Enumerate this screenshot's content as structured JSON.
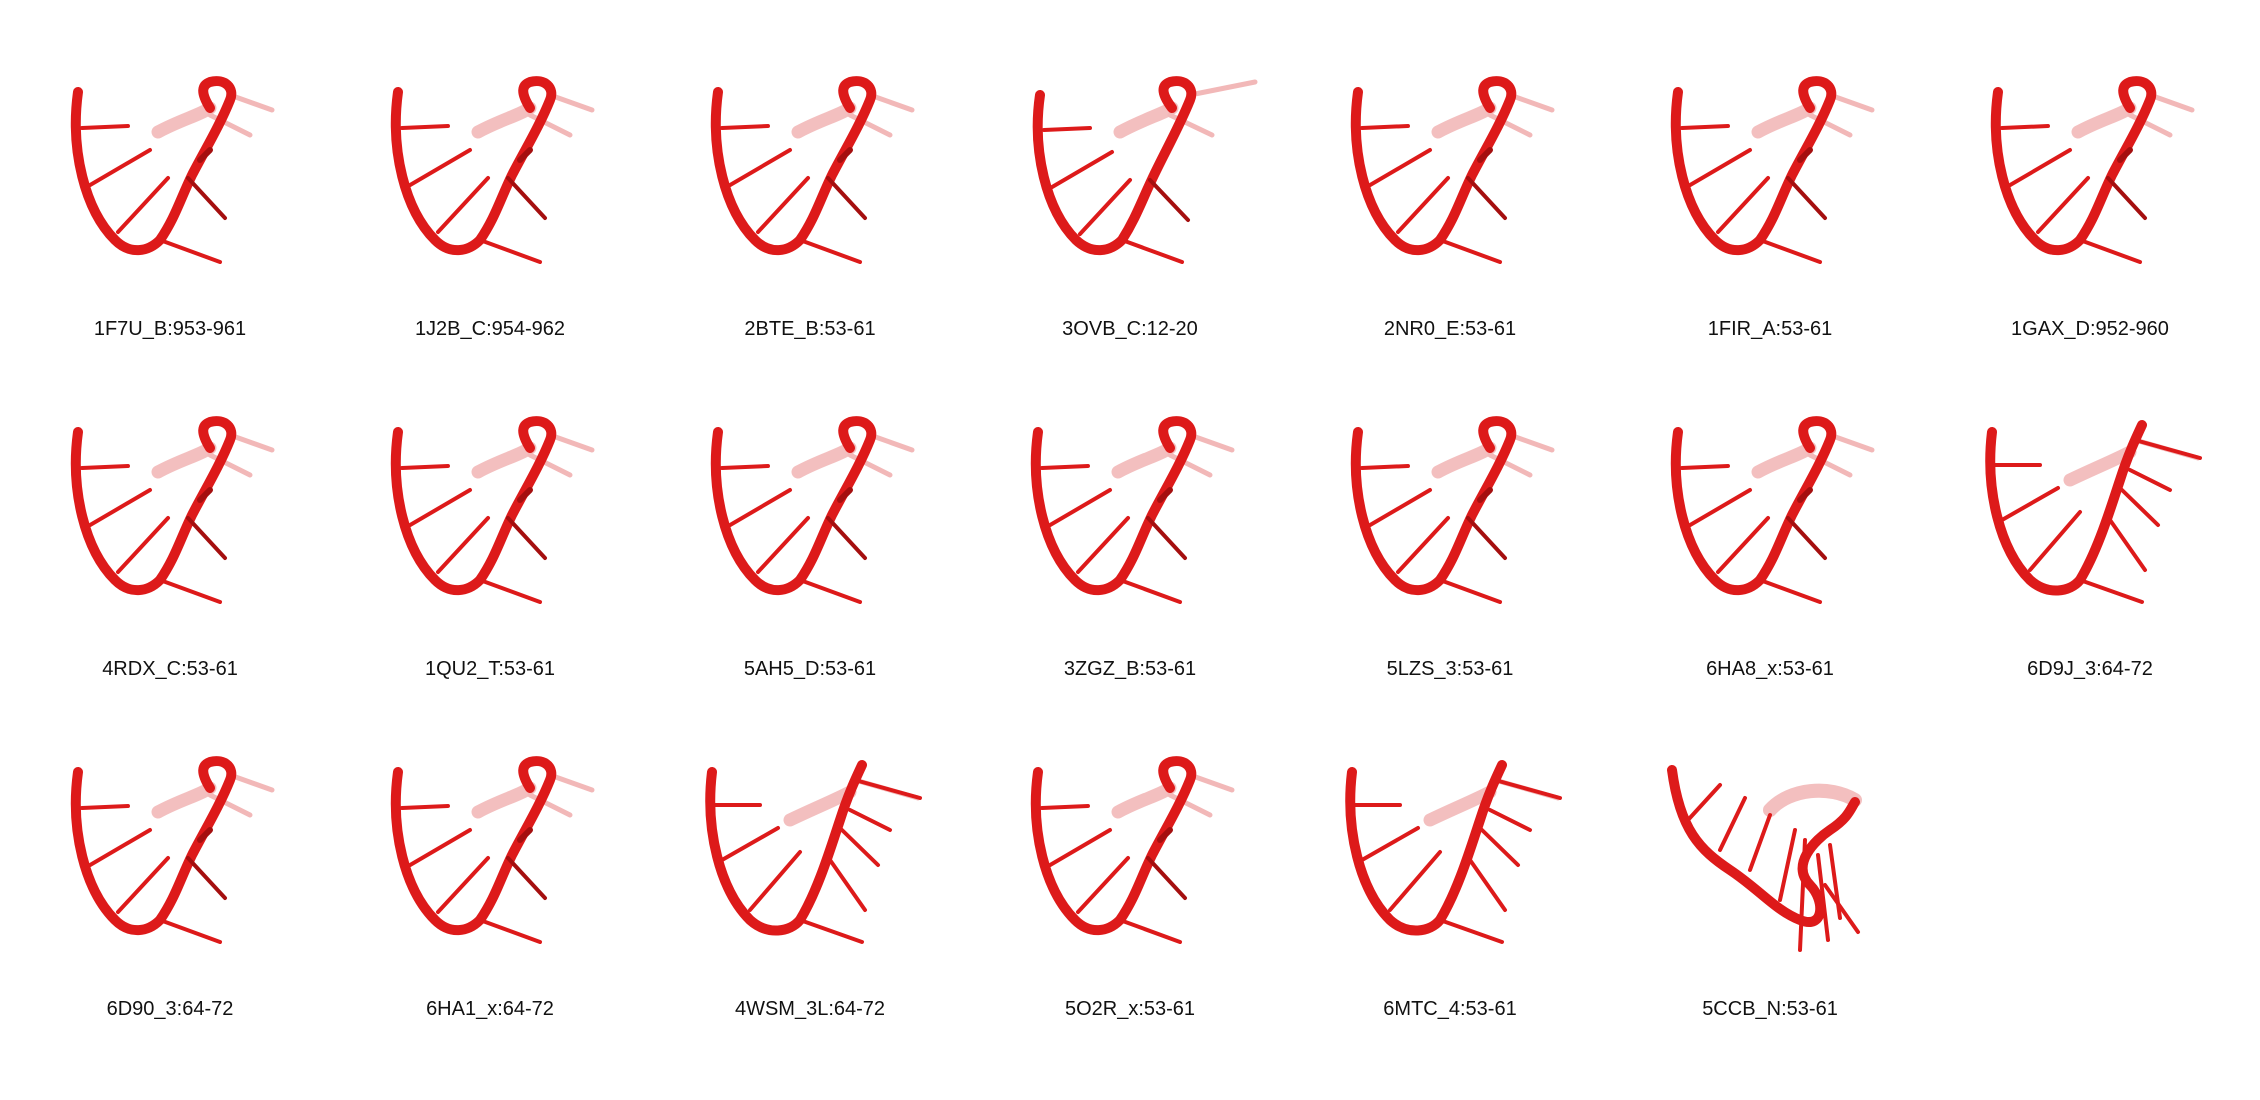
{
  "structure_color": "#dd1a1a",
  "structure_dark": "#a50f0f",
  "structure_faded": "#f2b8b8",
  "panels": [
    {
      "label": "1F7U_B:953-961",
      "variant": "a"
    },
    {
      "label": "1J2B_C:954-962",
      "variant": "a"
    },
    {
      "label": "2BTE_B:53-61",
      "variant": "a"
    },
    {
      "label": "3OVB_C:12-20",
      "variant": "b"
    },
    {
      "label": "2NR0_E:53-61",
      "variant": "a"
    },
    {
      "label": "1FIR_A:53-61",
      "variant": "a"
    },
    {
      "label": "1GAX_D:952-960",
      "variant": "a"
    },
    {
      "label": "4RDX_C:53-61",
      "variant": "a"
    },
    {
      "label": "1QU2_T:53-61",
      "variant": "a"
    },
    {
      "label": "5AH5_D:53-61",
      "variant": "a"
    },
    {
      "label": "3ZGZ_B:53-61",
      "variant": "a"
    },
    {
      "label": "5LZS_3:53-61",
      "variant": "a"
    },
    {
      "label": "6HA8_x:53-61",
      "variant": "a"
    },
    {
      "label": "6D9J_3:64-72",
      "variant": "c"
    },
    {
      "label": "6D90_3:64-72",
      "variant": "a"
    },
    {
      "label": "6HA1_x:64-72",
      "variant": "a"
    },
    {
      "label": "4WSM_3L:64-72",
      "variant": "c"
    },
    {
      "label": "5O2R_x:53-61",
      "variant": "a"
    },
    {
      "label": "6MTC_4:53-61",
      "variant": "c"
    },
    {
      "label": "5CCB_N:53-61",
      "variant": "d"
    }
  ]
}
